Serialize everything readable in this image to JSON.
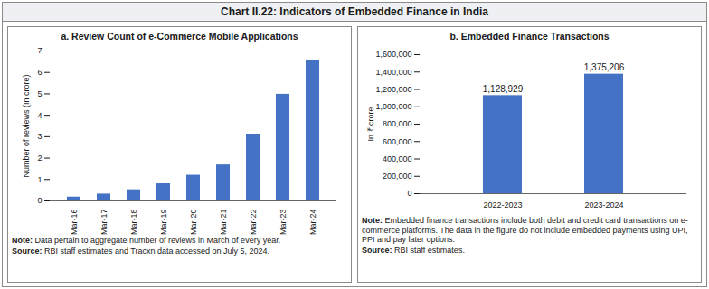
{
  "title": "Chart II.22: Indicators of Embedded Finance in India",
  "chart_data": [
    {
      "type": "bar",
      "title": "a. Review Count of e-Commerce Mobile Applications",
      "categories": [
        "Mar-16",
        "Mar-17",
        "Mar-18",
        "Mar-19",
        "Mar-20",
        "Mar-21",
        "Mar-22",
        "Mar-23",
        "Mar-24"
      ],
      "values": [
        0.18,
        0.32,
        0.52,
        0.8,
        1.2,
        1.68,
        3.12,
        4.98,
        6.58
      ],
      "color": "#4472C4",
      "ylabel": "Number of reviews (In crore)",
      "ylim": [
        0,
        7
      ],
      "yticks": [
        0,
        1,
        2,
        3,
        4,
        5,
        6,
        7
      ],
      "grid": false,
      "note": {
        "label": "Note:",
        "text": "Data pertain to aggregate number of reviews in March of every year."
      },
      "source": {
        "label": "Source:",
        "text": "RBI staff estimates and Tracxn data accessed on July 5, 2024."
      }
    },
    {
      "type": "bar",
      "title": "b. Embedded Finance Transactions",
      "categories": [
        "2022-2023",
        "2023-2024"
      ],
      "values": [
        1128929,
        1375206
      ],
      "value_labels": [
        "1,128,929",
        "1,375,206"
      ],
      "data_labels": true,
      "color": "#4472C4",
      "ylabel": "In ₹ crore",
      "ylim": [
        0,
        1600000
      ],
      "yticks": [
        0,
        {
          "value": 200000,
          "label": "200,000"
        },
        {
          "value": 400000,
          "label": "400,000"
        },
        {
          "value": 600000,
          "label": "600,000"
        },
        {
          "value": 800000,
          "label": "800,000"
        },
        {
          "value": 1000000,
          "label": "1,000,000"
        },
        {
          "value": 1200000,
          "label": "1,200,000"
        },
        {
          "value": 1400000,
          "label": "1,400,000"
        },
        {
          "value": 1600000,
          "label": "1,600,000"
        }
      ],
      "grid": false,
      "note": {
        "label": "Note:",
        "text": "Embedded finance transactions include both debit and credit card transactions on e-commerce platforms. The data in the figure do not include embedded payments using UPI, PPI and pay later options."
      },
      "source": {
        "label": "Source:",
        "text": "RBI staff estimates."
      }
    }
  ]
}
